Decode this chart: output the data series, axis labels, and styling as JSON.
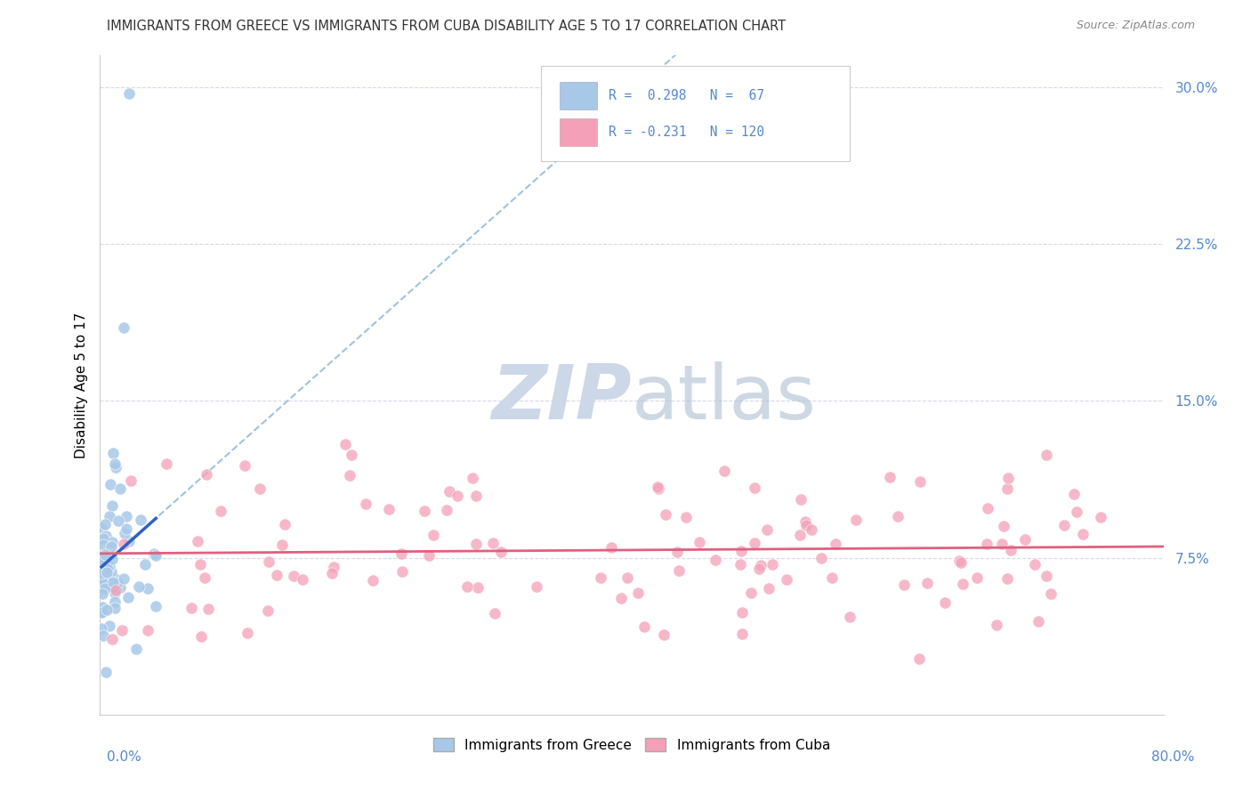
{
  "title": "IMMIGRANTS FROM GREECE VS IMMIGRANTS FROM CUBA DISABILITY AGE 5 TO 17 CORRELATION CHART",
  "source": "Source: ZipAtlas.com",
  "ylabel": "Disability Age 5 to 17",
  "ytick_labels": [
    "7.5%",
    "15.0%",
    "22.5%",
    "30.0%"
  ],
  "ytick_values": [
    0.075,
    0.15,
    0.225,
    0.3
  ],
  "xlim": [
    0.0,
    0.8
  ],
  "ylim": [
    0.0,
    0.315
  ],
  "color_greece": "#a8c8e8",
  "color_cuba": "#f4a0b8",
  "trendline_greece": "#3060c0",
  "trendline_cuba": "#e06080",
  "trendline_dashed": "#90b8d8",
  "watermark_color": "#ccd8e8",
  "background": "#ffffff",
  "grid_color": "#d8d8e8",
  "title_color": "#333333",
  "right_axis_color": "#5588cc",
  "seed": 42,
  "legend_r1_color": "#5588cc",
  "legend_r2_color": "#5588cc"
}
